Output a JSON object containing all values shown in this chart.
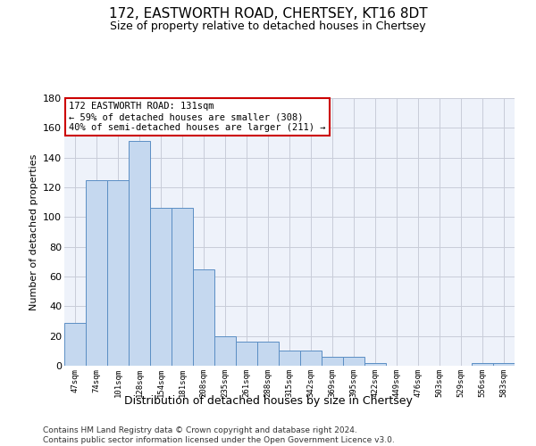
{
  "title": "172, EASTWORTH ROAD, CHERTSEY, KT16 8DT",
  "subtitle": "Size of property relative to detached houses in Chertsey",
  "xlabel": "Distribution of detached houses by size in Chertsey",
  "ylabel": "Number of detached properties",
  "categories": [
    "47sqm",
    "74sqm",
    "101sqm",
    "128sqm",
    "154sqm",
    "181sqm",
    "208sqm",
    "235sqm",
    "261sqm",
    "288sqm",
    "315sqm",
    "342sqm",
    "369sqm",
    "395sqm",
    "422sqm",
    "449sqm",
    "476sqm",
    "503sqm",
    "529sqm",
    "556sqm",
    "583sqm"
  ],
  "bar_values": [
    29,
    125,
    125,
    151,
    106,
    106,
    65,
    20,
    16,
    16,
    10,
    10,
    6,
    6,
    2,
    0,
    0,
    0,
    0,
    2,
    2
  ],
  "bar_color": "#c5d8ef",
  "bar_edge_color": "#5b8ec4",
  "annotation_text": "172 EASTWORTH ROAD: 131sqm\n← 59% of detached houses are smaller (308)\n40% of semi-detached houses are larger (211) →",
  "annotation_box_color": "white",
  "annotation_box_edge_color": "#cc0000",
  "ylim": [
    0,
    180
  ],
  "yticks": [
    0,
    20,
    40,
    60,
    80,
    100,
    120,
    140,
    160,
    180
  ],
  "bg_color": "#eef2fa",
  "grid_color": "#c8ccd8",
  "footer_line1": "Contains HM Land Registry data © Crown copyright and database right 2024.",
  "footer_line2": "Contains public sector information licensed under the Open Government Licence v3.0."
}
